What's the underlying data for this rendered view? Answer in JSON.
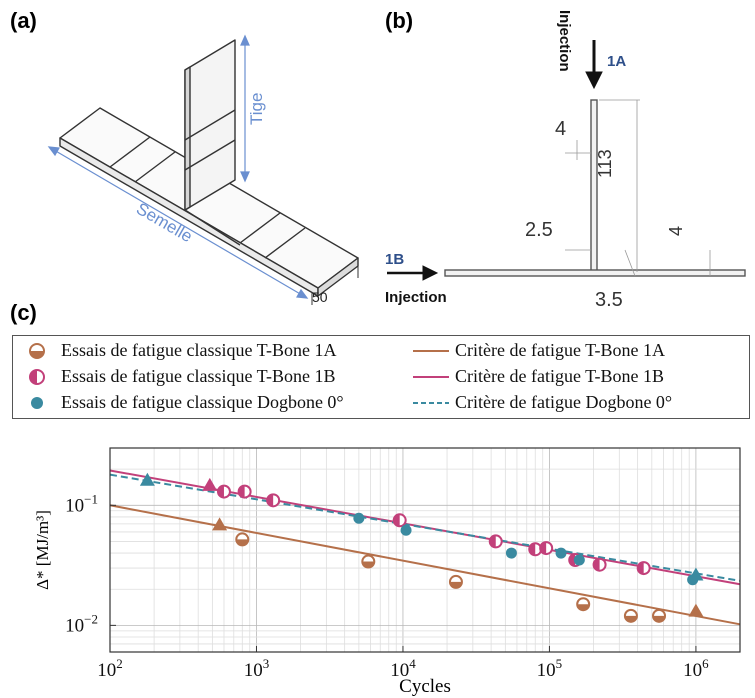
{
  "panels": {
    "a": {
      "label": "(a)",
      "tige_label": "Tige",
      "semelle_label": "Semelle",
      "width_label": "50"
    },
    "b": {
      "label": "(b)",
      "injection_top": "Injection",
      "tag_1a": "1A",
      "tag_1b": "1B",
      "injection_left": "Injection",
      "dims": {
        "d4_top": "4",
        "d113": "113",
        "d2_5": "2.5",
        "d4_right": "4",
        "d3_5": "3.5"
      }
    },
    "c": {
      "label": "(c)"
    }
  },
  "colors": {
    "brown": "#b5704a",
    "pink": "#c2407a",
    "teal": "#3a8aa0",
    "label_blue": "#2e4f8a"
  },
  "legend": [
    {
      "text": "Essais de fatigue classique T-Bone 1A",
      "symbol": "half-circle-brown"
    },
    {
      "text": "Critère de fatigue T-Bone 1A",
      "symbol": "line-brown"
    },
    {
      "text": "Essais de fatigue classique T-Bone 1B",
      "symbol": "half-circle-pink"
    },
    {
      "text": "Critère de fatigue T-Bone 1B",
      "symbol": "line-pink"
    },
    {
      "text": "Essais de fatigue classique Dogbone 0°",
      "symbol": "dot-teal"
    },
    {
      "text": "Critère de fatigue Dogbone 0°",
      "symbol": "dashed-teal"
    }
  ],
  "chart_data": {
    "type": "scatter",
    "xscale": "log",
    "yscale": "log",
    "xlim": [
      100,
      2000000
    ],
    "ylim": [
      0.006,
      0.3
    ],
    "xlabel": "Cycles",
    "ylabel": "Δ* [MJ/m³]",
    "xticks": [
      {
        "value": 100,
        "base": "10",
        "exp": "2"
      },
      {
        "value": 1000,
        "base": "10",
        "exp": "3"
      },
      {
        "value": 10000,
        "base": "10",
        "exp": "4"
      },
      {
        "value": 100000,
        "base": "10",
        "exp": "5"
      },
      {
        "value": 1000000,
        "base": "10",
        "exp": "6"
      }
    ],
    "yticks": [
      {
        "value": 0.01,
        "base": "10",
        "exp": "−2"
      },
      {
        "value": 0.1,
        "base": "10",
        "exp": "−1"
      }
    ],
    "grid": true,
    "series": [
      {
        "name": "Essais de fatigue classique T-Bone 1A",
        "marker": "half-circle",
        "color": "#b5704a",
        "points": [
          [
            800,
            0.052
          ],
          [
            5800,
            0.034
          ],
          [
            23000,
            0.023
          ],
          [
            170000,
            0.015
          ],
          [
            360000,
            0.012
          ],
          [
            560000,
            0.012
          ]
        ]
      },
      {
        "name": "Essais de fatigue classique T-Bone 1B",
        "marker": "half-circle",
        "color": "#c2407a",
        "points": [
          [
            600,
            0.13
          ],
          [
            830,
            0.13
          ],
          [
            1300,
            0.11
          ],
          [
            9500,
            0.075
          ],
          [
            43000,
            0.05
          ],
          [
            80000,
            0.043
          ],
          [
            95000,
            0.044
          ],
          [
            150000,
            0.035
          ],
          [
            220000,
            0.032
          ],
          [
            440000,
            0.03
          ]
        ]
      },
      {
        "name": "Essais de fatigue classique Dogbone 0°",
        "marker": "dot",
        "color": "#3a8aa0",
        "points": [
          [
            5000,
            0.078
          ],
          [
            10500,
            0.062
          ],
          [
            55000,
            0.04
          ],
          [
            120000,
            0.04
          ],
          [
            160000,
            0.035
          ],
          [
            950000,
            0.024
          ]
        ]
      },
      {
        "name": "Triangles brown",
        "marker": "triangle",
        "color": "#b5704a",
        "points": [
          [
            560,
            0.068
          ],
          [
            1000000,
            0.013
          ]
        ]
      },
      {
        "name": "Triangles pink",
        "marker": "triangle",
        "color": "#c2407a",
        "points": [
          [
            480,
            0.145
          ]
        ]
      },
      {
        "name": "Triangles teal",
        "marker": "triangle",
        "color": "#3a8aa0",
        "points": [
          [
            180,
            0.16
          ],
          [
            1000000,
            0.026
          ]
        ]
      }
    ],
    "lines": [
      {
        "name": "Critère de fatigue T-Bone 1A",
        "style": "solid",
        "color": "#b5704a",
        "points": [
          [
            100,
            0.1
          ],
          [
            2000000,
            0.0102
          ]
        ]
      },
      {
        "name": "Critère de fatigue T-Bone 1B",
        "style": "solid",
        "color": "#c2407a",
        "points": [
          [
            100,
            0.195
          ],
          [
            2000000,
            0.022
          ]
        ]
      },
      {
        "name": "Critère de fatigue Dogbone 0°",
        "style": "dashed",
        "color": "#3a8aa0",
        "points": [
          [
            100,
            0.18
          ],
          [
            2000000,
            0.0235
          ]
        ]
      }
    ]
  }
}
